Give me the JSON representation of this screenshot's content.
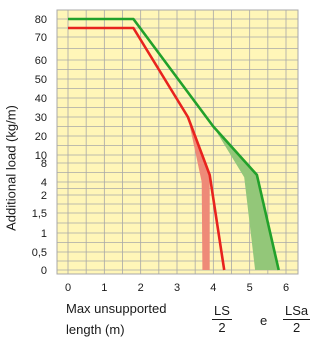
{
  "chart_data": {
    "type": "line",
    "ylabel": "Additional load (kg/m)",
    "xlabel_line1": "Max unsupported",
    "xlabel_line2": "length (m)",
    "formula": {
      "left_num": "LS",
      "left_den": "2",
      "connector": "e",
      "right_num": "LSa",
      "right_den": "2"
    },
    "x_ticks": [
      "0",
      "1",
      "2",
      "3",
      "4",
      "5",
      "6"
    ],
    "xlim": [
      0,
      6
    ],
    "y_ticks": [
      "0",
      "0,5",
      "1",
      "1,5",
      "2",
      "4",
      "8",
      "10",
      "20",
      "30",
      "40",
      "50",
      "60",
      "70",
      "80"
    ],
    "y_scale": "piecewise",
    "grid": true,
    "background_color": "#fff6b8",
    "grid_color": "#a8a8a8",
    "series": [
      {
        "color": "#e8231e",
        "fill_color": "#ee8a78",
        "points": [
          [
            0,
            75
          ],
          [
            1.8,
            75
          ],
          [
            3.3,
            30
          ],
          [
            3.9,
            5.5
          ],
          [
            4.3,
            0
          ]
        ],
        "band": [
          [
            3.3,
            30
          ],
          [
            3.9,
            5.5
          ],
          [
            3.9,
            0
          ],
          [
            3.7,
            0
          ],
          [
            3.68,
            4
          ]
        ]
      },
      {
        "color": "#22a12b",
        "fill_color": "#93c779",
        "points": [
          [
            0,
            80
          ],
          [
            1.8,
            80
          ],
          [
            4.0,
            25
          ],
          [
            5.2,
            5.5
          ],
          [
            5.8,
            0
          ]
        ],
        "band": [
          [
            4.0,
            25
          ],
          [
            5.2,
            5.5
          ],
          [
            5.8,
            0
          ],
          [
            5.15,
            0
          ],
          [
            4.85,
            5
          ]
        ]
      }
    ]
  }
}
